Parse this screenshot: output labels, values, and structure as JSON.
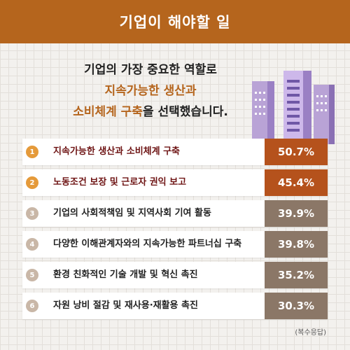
{
  "header": {
    "title": "기업이 해야할 일"
  },
  "headline": {
    "line1": "기업의 가장 중요한 역할로",
    "line2": "지속가능한 생산과",
    "line3_highlight": "소비체계 구축",
    "line3_rest": "을 선택했습니다."
  },
  "colors": {
    "brand": "#b5651d",
    "top_value_bg": "#b5521c",
    "rest_value_bg": "#8b7767",
    "rest_number_bg": "#c9b7a7",
    "top_number_bg": "#e59a3a"
  },
  "chart_data": {
    "type": "table",
    "categories": [
      "지속가능한 생산과 소비체계 구축",
      "노동조건 보장 및 근로자 권익 보고",
      "기업의 사회적책임 및 지역사회 기여 활동",
      "다양한 이해관계자와의 지속가능한 파트너십 구축",
      "환경 친화적인 기술 개발 및 혁신 촉진",
      "자원 낭비 절감 및 재사용·재활용 촉진"
    ],
    "ranks": [
      "1",
      "2",
      "3",
      "4",
      "5",
      "6"
    ],
    "values": [
      50.7,
      45.4,
      39.9,
      39.8,
      35.2,
      30.3
    ],
    "value_labels": [
      "50.7%",
      "45.4%",
      "39.9%",
      "39.8%",
      "35.2%",
      "30.3%"
    ],
    "note": "(복수응답)"
  }
}
